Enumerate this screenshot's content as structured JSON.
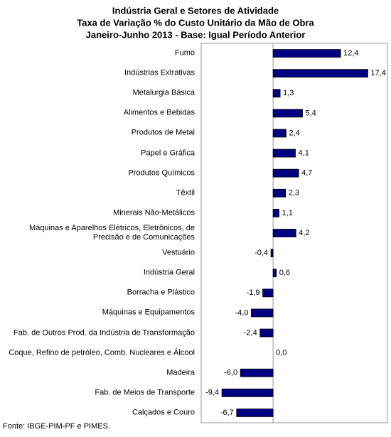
{
  "chart_data": {
    "type": "barh",
    "title_lines": [
      "Indústria Geral e Setores de Atividade",
      "Taxa de Variação % do Custo Unitário da Mão de Obra",
      "Janeiro-Junho 2013 - Base: Igual Período Anterior"
    ],
    "categories": [
      "Fumo",
      "Indústrias Extrativas",
      "Metalurgia Básica",
      "Alimentos e Bebidas",
      "Produtos de Metal",
      "Papel e Gráfica",
      "Produtos Químicos",
      "Têxtil",
      "Minerais Não-Metálicos",
      "Máquinas e Aparelhos Elétricos, Eletrônicos, de Precisão e de Comunicações",
      "Vestuário",
      "Indústria Geral",
      "Borracha e Plástico",
      "Máquinas e Equipamentos",
      "Fab. de Outros Prod. da Indústria de Transformação",
      "Coque, Refino de petróleo, Comb. Nucleares e Álcool",
      "Madeira",
      "Fab. de Meios de Transporte",
      "Calçados e Couro"
    ],
    "values": [
      12.4,
      17.4,
      1.3,
      5.4,
      2.4,
      4.1,
      4.7,
      2.3,
      1.1,
      4.2,
      -0.4,
      0.6,
      -1.9,
      -4.0,
      -2.4,
      0.0,
      -6.0,
      -9.4,
      -6.7
    ],
    "value_labels": [
      "12,4",
      "17,4",
      "1,3",
      "5,4",
      "2,4",
      "4,1",
      "4,7",
      "2,3",
      "1,1",
      "4,2",
      "-0,4",
      "0,6",
      "-1,9",
      "-4,0",
      "-2,4",
      "0,0",
      "-6,0",
      "-9,4",
      "-6,7"
    ],
    "color": "#000080",
    "xlim": [
      -13.2,
      21
    ],
    "source": "Fonte: IBGE-PIM-PF e PIMES."
  }
}
